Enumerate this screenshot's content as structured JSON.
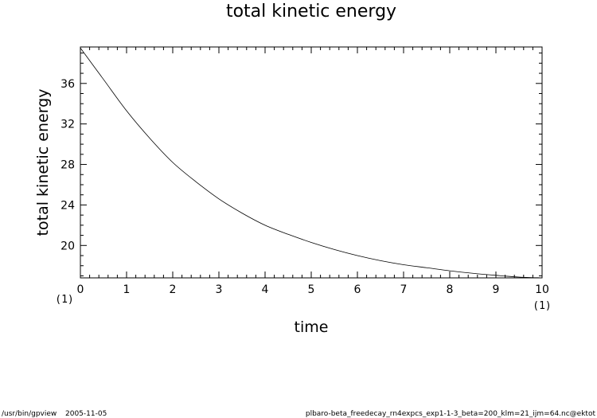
{
  "chart_data": {
    "type": "line",
    "title": "total kinetic energy",
    "xlabel": "time",
    "ylabel": "total kinetic energy",
    "x_unit_label": "(1)",
    "y_unit_label": "(1)",
    "xlim": [
      0,
      10
    ],
    "ylim": [
      16.8,
      39.6
    ],
    "x_ticks": [
      0,
      1,
      2,
      3,
      4,
      5,
      6,
      7,
      8,
      9,
      10
    ],
    "y_ticks": [
      20,
      24,
      28,
      32,
      36
    ],
    "grid": false,
    "series": [
      {
        "x": [
          0,
          0.5,
          1,
          1.5,
          2,
          2.5,
          3,
          3.5,
          4,
          4.5,
          5,
          5.5,
          6,
          6.5,
          7,
          7.5,
          8,
          8.5,
          9,
          9.5,
          10
        ],
        "values": [
          39.5,
          36.4,
          33.3,
          30.6,
          28.2,
          26.3,
          24.6,
          23.2,
          22.0,
          21.1,
          20.3,
          19.6,
          19.0,
          18.5,
          18.1,
          17.8,
          17.5,
          17.25,
          17.05,
          16.88,
          16.8
        ]
      }
    ]
  },
  "footer": {
    "program": "/usr/bin/gpview",
    "date": "2005-11-05",
    "source": "plbaro-beta_freedecay_rn4expcs_exp1-1-3_beta=200_klm=21_ijm=64.nc@ektot"
  }
}
